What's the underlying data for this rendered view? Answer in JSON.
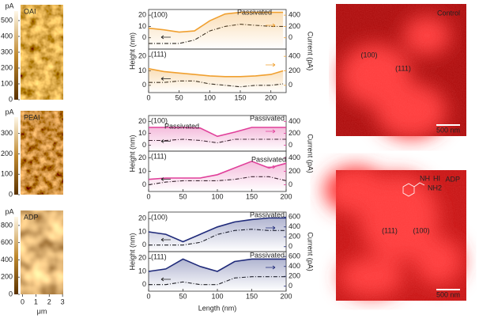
{
  "afm": [
    {
      "label": "OAI",
      "unit": "pA",
      "clim": [
        0,
        560
      ],
      "cticks": [
        0,
        100,
        200,
        300,
        400,
        500
      ]
    },
    {
      "label": "PEAI",
      "unit": "pA",
      "clim": [
        0,
        380
      ],
      "cticks": [
        0,
        100,
        200,
        300
      ]
    },
    {
      "label": "ADP",
      "unit": "pA",
      "clim": [
        0,
        900
      ],
      "cticks": [
        0,
        200,
        400,
        600,
        800
      ]
    }
  ],
  "afm_xaxis": {
    "label": "μm",
    "lim": [
      -0.15,
      3.05
    ],
    "ticks": [
      0,
      1,
      2,
      3
    ]
  },
  "row_labels": [
    {
      "y": "Height (nm)",
      "y2": "Current (pA)"
    },
    {
      "y": "Height (nm)",
      "y2": "Current (pA)"
    },
    {
      "y": "Height (nm)",
      "y2": "Current (pA)"
    }
  ],
  "x_label": "Length (nm)",
  "chart_data": [
    {
      "type": "line",
      "label": "(100)",
      "annotations": [
        "Passivated"
      ],
      "x": [
        0,
        25,
        50,
        75,
        100,
        125,
        150,
        175,
        200,
        220
      ],
      "series": [
        {
          "color": "#222222",
          "style": "dashdot",
          "values": [
            -5,
            -5,
            -5,
            -2,
            6,
            10,
            12,
            11,
            10,
            10
          ]
        },
        {
          "color": "#f0a030",
          "axis": "y2",
          "values": [
            170,
            140,
            100,
            120,
            300,
            420,
            450,
            450,
            450,
            450
          ]
        }
      ],
      "xlim": [
        0,
        225
      ],
      "ylim": [
        -10,
        25
      ],
      "yticks": [
        0,
        10,
        20
      ],
      "y2lim": [
        -200,
        500
      ],
      "y2ticks": [
        0,
        200,
        400
      ]
    },
    {
      "type": "line",
      "label": "(111)",
      "annotations": [],
      "x": [
        0,
        25,
        50,
        75,
        100,
        125,
        150,
        175,
        200,
        220
      ],
      "series": [
        {
          "color": "#222222",
          "style": "dashdot",
          "values": [
            2,
            2,
            3,
            3,
            1,
            0,
            -1,
            0,
            0,
            1
          ]
        },
        {
          "color": "#f0a030",
          "axis": "y2",
          "values": [
            230,
            190,
            170,
            150,
            130,
            120,
            120,
            130,
            150,
            200
          ]
        }
      ],
      "xlim": [
        0,
        225
      ],
      "xticks": [
        0,
        50,
        100,
        150,
        200
      ],
      "ylim": [
        -5,
        25
      ],
      "yticks": [
        0,
        10,
        20
      ],
      "y2lim": [
        -100,
        500
      ],
      "y2ticks": [
        0,
        200,
        400
      ]
    },
    {
      "type": "line",
      "label": "(100)",
      "annotations": [
        "Passivated",
        "Passivated"
      ],
      "x": [
        0,
        25,
        50,
        75,
        100,
        125,
        150,
        175,
        200
      ],
      "series": [
        {
          "color": "#222222",
          "style": "dashdot",
          "values": [
            4,
            4,
            5,
            4,
            2,
            5,
            5,
            5,
            5
          ]
        },
        {
          "color": "#e0409a",
          "axis": "y2",
          "values": [
            300,
            300,
            300,
            290,
            150,
            220,
            300,
            300,
            300
          ]
        }
      ],
      "xlim": [
        0,
        200
      ],
      "ylim": [
        -5,
        25
      ],
      "yticks": [
        0,
        10,
        20
      ],
      "y2lim": [
        -100,
        500
      ],
      "y2ticks": [
        0,
        200,
        400
      ]
    },
    {
      "type": "line",
      "label": "(111)",
      "annotations": [
        "Passivated"
      ],
      "x": [
        0,
        25,
        50,
        75,
        100,
        125,
        150,
        175,
        200
      ],
      "series": [
        {
          "color": "#222222",
          "style": "dashdot",
          "values": [
            0,
            2,
            3,
            3,
            3,
            4,
            6,
            6,
            3
          ]
        },
        {
          "color": "#e0409a",
          "axis": "y2",
          "values": [
            80,
            100,
            100,
            100,
            150,
            250,
            350,
            250,
            320
          ]
        }
      ],
      "xlim": [
        0,
        200
      ],
      "xticks": [
        0,
        50,
        100,
        150,
        200
      ],
      "ylim": [
        -5,
        25
      ],
      "yticks": [
        0,
        10,
        20
      ],
      "y2lim": [
        -100,
        500
      ],
      "y2ticks": [
        0,
        200,
        400
      ]
    },
    {
      "type": "line",
      "label": "(100)",
      "annotations": [
        "Passivated"
      ],
      "x": [
        0,
        25,
        50,
        75,
        100,
        125,
        150,
        175,
        200
      ],
      "series": [
        {
          "color": "#222222",
          "style": "dashdot",
          "values": [
            0,
            0,
            0,
            2,
            8,
            11,
            12,
            11,
            11
          ]
        },
        {
          "color": "#1f2a7a",
          "axis": "y2",
          "values": [
            300,
            250,
            100,
            250,
            400,
            500,
            550,
            580,
            580
          ]
        }
      ],
      "xlim": [
        0,
        200
      ],
      "ylim": [
        -5,
        25
      ],
      "yticks": [
        0,
        10,
        20
      ],
      "y2lim": [
        -100,
        700
      ],
      "y2ticks": [
        0,
        200,
        400,
        600
      ]
    },
    {
      "type": "line",
      "label": "(111)",
      "annotations": [
        "Passivated"
      ],
      "x": [
        0,
        25,
        50,
        75,
        100,
        125,
        150,
        175,
        200
      ],
      "series": [
        {
          "color": "#222222",
          "style": "dashdot",
          "values": [
            0,
            0,
            2,
            0,
            0,
            5,
            6,
            6,
            6
          ]
        },
        {
          "color": "#1f2a7a",
          "axis": "y2",
          "values": [
            300,
            350,
            550,
            400,
            300,
            500,
            550,
            550,
            550
          ]
        }
      ],
      "xlim": [
        0,
        200
      ],
      "xticks": [
        0,
        50,
        100,
        150,
        200
      ],
      "ylim": [
        -5,
        25
      ],
      "yticks": [
        0,
        10,
        20
      ],
      "y2lim": [
        -100,
        700
      ],
      "y2ticks": [
        0,
        200,
        400,
        600
      ]
    }
  ],
  "pl": [
    {
      "label": "Control",
      "facets": [
        "(100)",
        "(111)"
      ],
      "scale": "500 nm"
    },
    {
      "label": "ADP",
      "facets": [
        "(111)",
        "(100)"
      ],
      "scale": "500 nm",
      "molecule": [
        "NH",
        "NH2",
        "HI"
      ]
    }
  ]
}
